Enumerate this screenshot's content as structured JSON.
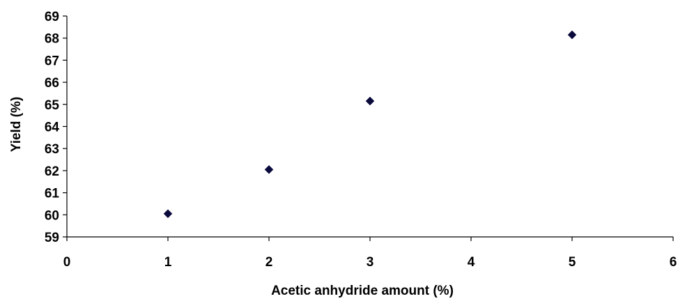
{
  "chart_data": {
    "type": "scatter",
    "title": "",
    "xlabel": "Acetic anhydride amount (%)",
    "ylabel": "Yield (%)",
    "xlim": [
      0,
      6
    ],
    "ylim": [
      59,
      69
    ],
    "xticks": [
      "0",
      "1",
      "2",
      "3",
      "4",
      "5",
      "6"
    ],
    "yticks": [
      "59",
      "60",
      "61",
      "62",
      "63",
      "64",
      "65",
      "66",
      "67",
      "68",
      "69"
    ],
    "grid": false,
    "legend": "none",
    "marker": "diamond",
    "marker_color": "#0a0a3c",
    "series": [
      {
        "points": [
          {
            "x": 1,
            "y": 60.05
          },
          {
            "x": 2,
            "y": 62.05
          },
          {
            "x": 3,
            "y": 65.15
          },
          {
            "x": 5,
            "y": 68.15
          }
        ]
      }
    ]
  }
}
